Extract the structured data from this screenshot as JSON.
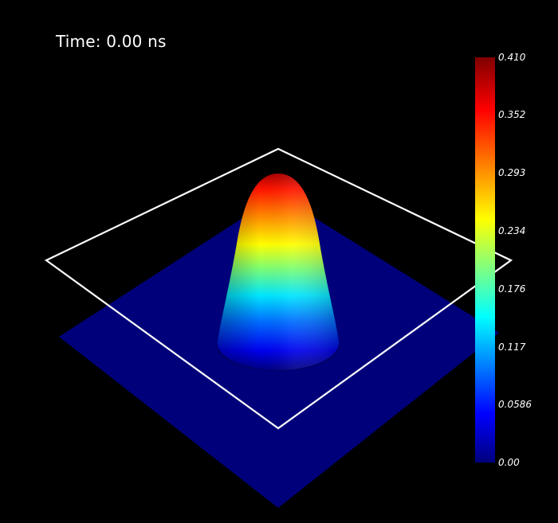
{
  "time_text": "Time: 0.00 ns",
  "colorbar": {
    "range": [
      0.0,
      0.41
    ],
    "colormap": "jet",
    "ticks": [
      {
        "label": "0.410",
        "value": 0.41
      },
      {
        "label": "0.352",
        "value": 0.352
      },
      {
        "label": "0.293",
        "value": 0.293
      },
      {
        "label": "0.234",
        "value": 0.234
      },
      {
        "label": "0.176",
        "value": 0.176
      },
      {
        "label": "0.117",
        "value": 0.117
      },
      {
        "label": "0.0586",
        "value": 0.0586
      },
      {
        "label": "0.00",
        "value": 0.0
      }
    ]
  },
  "surface": {
    "peak_value": 0.41,
    "shape": "gaussian"
  },
  "colors": {
    "background": "#000000",
    "plane": "#00007a",
    "outline": "#ffffff",
    "jet_stops": [
      "#000080",
      "#0000ff",
      "#00ffff",
      "#ffff00",
      "#ff0000",
      "#800000"
    ]
  }
}
